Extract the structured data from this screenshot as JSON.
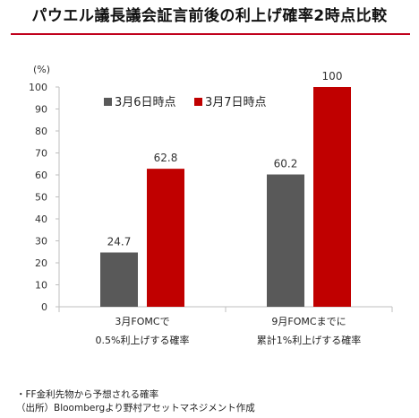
{
  "title": "パウエル議長議会証言前後の利上げ確率2時点比較",
  "chart_data": {
    "type": "bar",
    "unit_label": "(%)",
    "ylim": [
      0,
      100
    ],
    "yticks": [
      0,
      10,
      20,
      30,
      40,
      50,
      60,
      70,
      80,
      90,
      100
    ],
    "grid": false,
    "legend_position": "top-left",
    "categories": [
      [
        "3月FOMCで",
        "0.5%利上げする確率"
      ],
      [
        "9月FOMCまでに",
        "累計1%利上げする確率"
      ]
    ],
    "series": [
      {
        "name": "3月6日時点",
        "color": "#595959",
        "values": [
          24.7,
          60.2
        ],
        "labels": [
          "24.7",
          "60.2"
        ]
      },
      {
        "name": "3月7日時点",
        "color": "#c00000",
        "values": [
          62.8,
          100
        ],
        "labels": [
          "62.8",
          "100"
        ]
      }
    ]
  },
  "footnotes": [
    "・FF金利先物から予想される確率",
    "（出所）Bloombergより野村アセットマネジメント作成"
  ]
}
